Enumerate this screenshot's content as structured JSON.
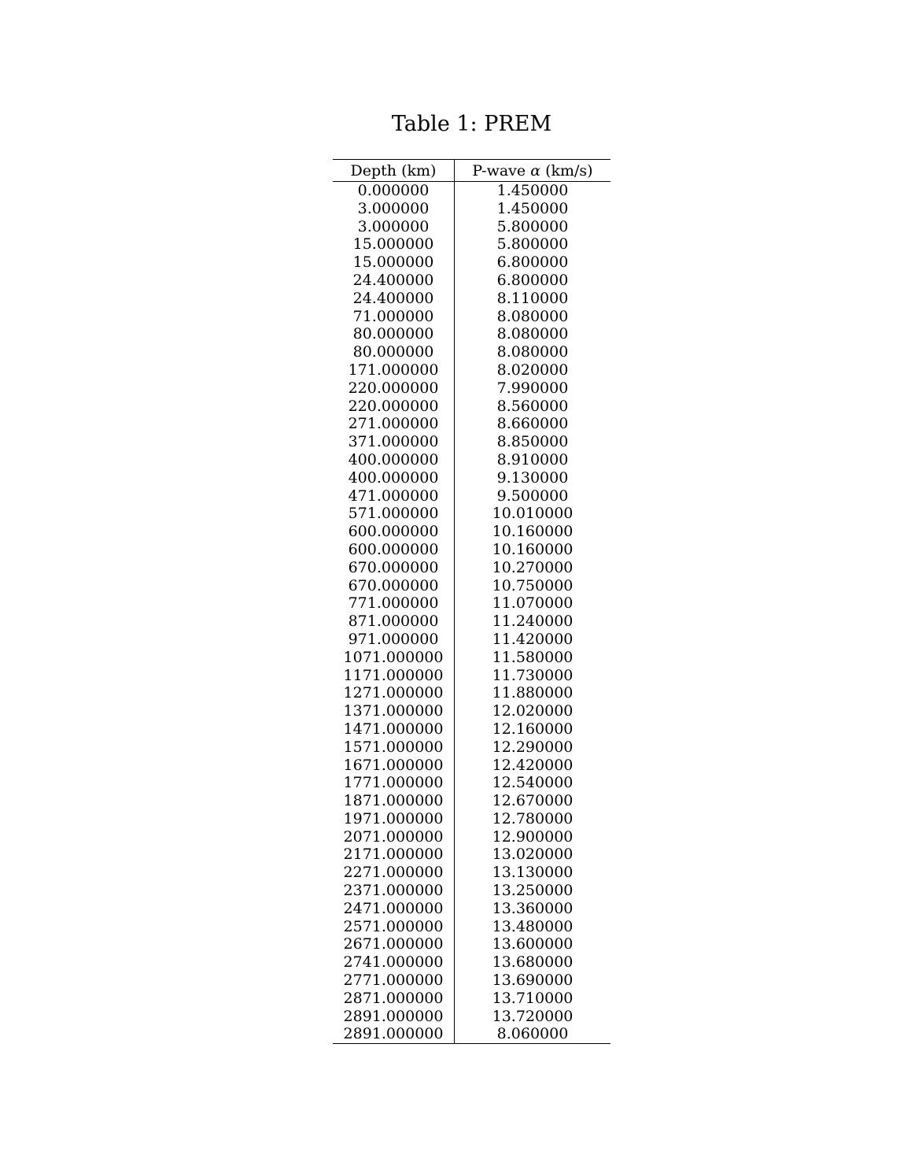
{
  "table": {
    "caption": "Table 1: PREM",
    "columns": [
      {
        "label": "Depth (km)"
      },
      {
        "label": "P-wave α (km/s)",
        "prefix": "P-wave ",
        "symbol": "α",
        "suffix": " (km/s)"
      }
    ],
    "rows": [
      [
        "0.000000",
        "1.450000"
      ],
      [
        "3.000000",
        "1.450000"
      ],
      [
        "3.000000",
        "5.800000"
      ],
      [
        "15.000000",
        "5.800000"
      ],
      [
        "15.000000",
        "6.800000"
      ],
      [
        "24.400000",
        "6.800000"
      ],
      [
        "24.400000",
        "8.110000"
      ],
      [
        "71.000000",
        "8.080000"
      ],
      [
        "80.000000",
        "8.080000"
      ],
      [
        "80.000000",
        "8.080000"
      ],
      [
        "171.000000",
        "8.020000"
      ],
      [
        "220.000000",
        "7.990000"
      ],
      [
        "220.000000",
        "8.560000"
      ],
      [
        "271.000000",
        "8.660000"
      ],
      [
        "371.000000",
        "8.850000"
      ],
      [
        "400.000000",
        "8.910000"
      ],
      [
        "400.000000",
        "9.130000"
      ],
      [
        "471.000000",
        "9.500000"
      ],
      [
        "571.000000",
        "10.010000"
      ],
      [
        "600.000000",
        "10.160000"
      ],
      [
        "600.000000",
        "10.160000"
      ],
      [
        "670.000000",
        "10.270000"
      ],
      [
        "670.000000",
        "10.750000"
      ],
      [
        "771.000000",
        "11.070000"
      ],
      [
        "871.000000",
        "11.240000"
      ],
      [
        "971.000000",
        "11.420000"
      ],
      [
        "1071.000000",
        "11.580000"
      ],
      [
        "1171.000000",
        "11.730000"
      ],
      [
        "1271.000000",
        "11.880000"
      ],
      [
        "1371.000000",
        "12.020000"
      ],
      [
        "1471.000000",
        "12.160000"
      ],
      [
        "1571.000000",
        "12.290000"
      ],
      [
        "1671.000000",
        "12.420000"
      ],
      [
        "1771.000000",
        "12.540000"
      ],
      [
        "1871.000000",
        "12.670000"
      ],
      [
        "1971.000000",
        "12.780000"
      ],
      [
        "2071.000000",
        "12.900000"
      ],
      [
        "2171.000000",
        "13.020000"
      ],
      [
        "2271.000000",
        "13.130000"
      ],
      [
        "2371.000000",
        "13.250000"
      ],
      [
        "2471.000000",
        "13.360000"
      ],
      [
        "2571.000000",
        "13.480000"
      ],
      [
        "2671.000000",
        "13.600000"
      ],
      [
        "2741.000000",
        "13.680000"
      ],
      [
        "2771.000000",
        "13.690000"
      ],
      [
        "2871.000000",
        "13.710000"
      ],
      [
        "2891.000000",
        "13.720000"
      ],
      [
        "2891.000000",
        "8.060000"
      ]
    ]
  }
}
